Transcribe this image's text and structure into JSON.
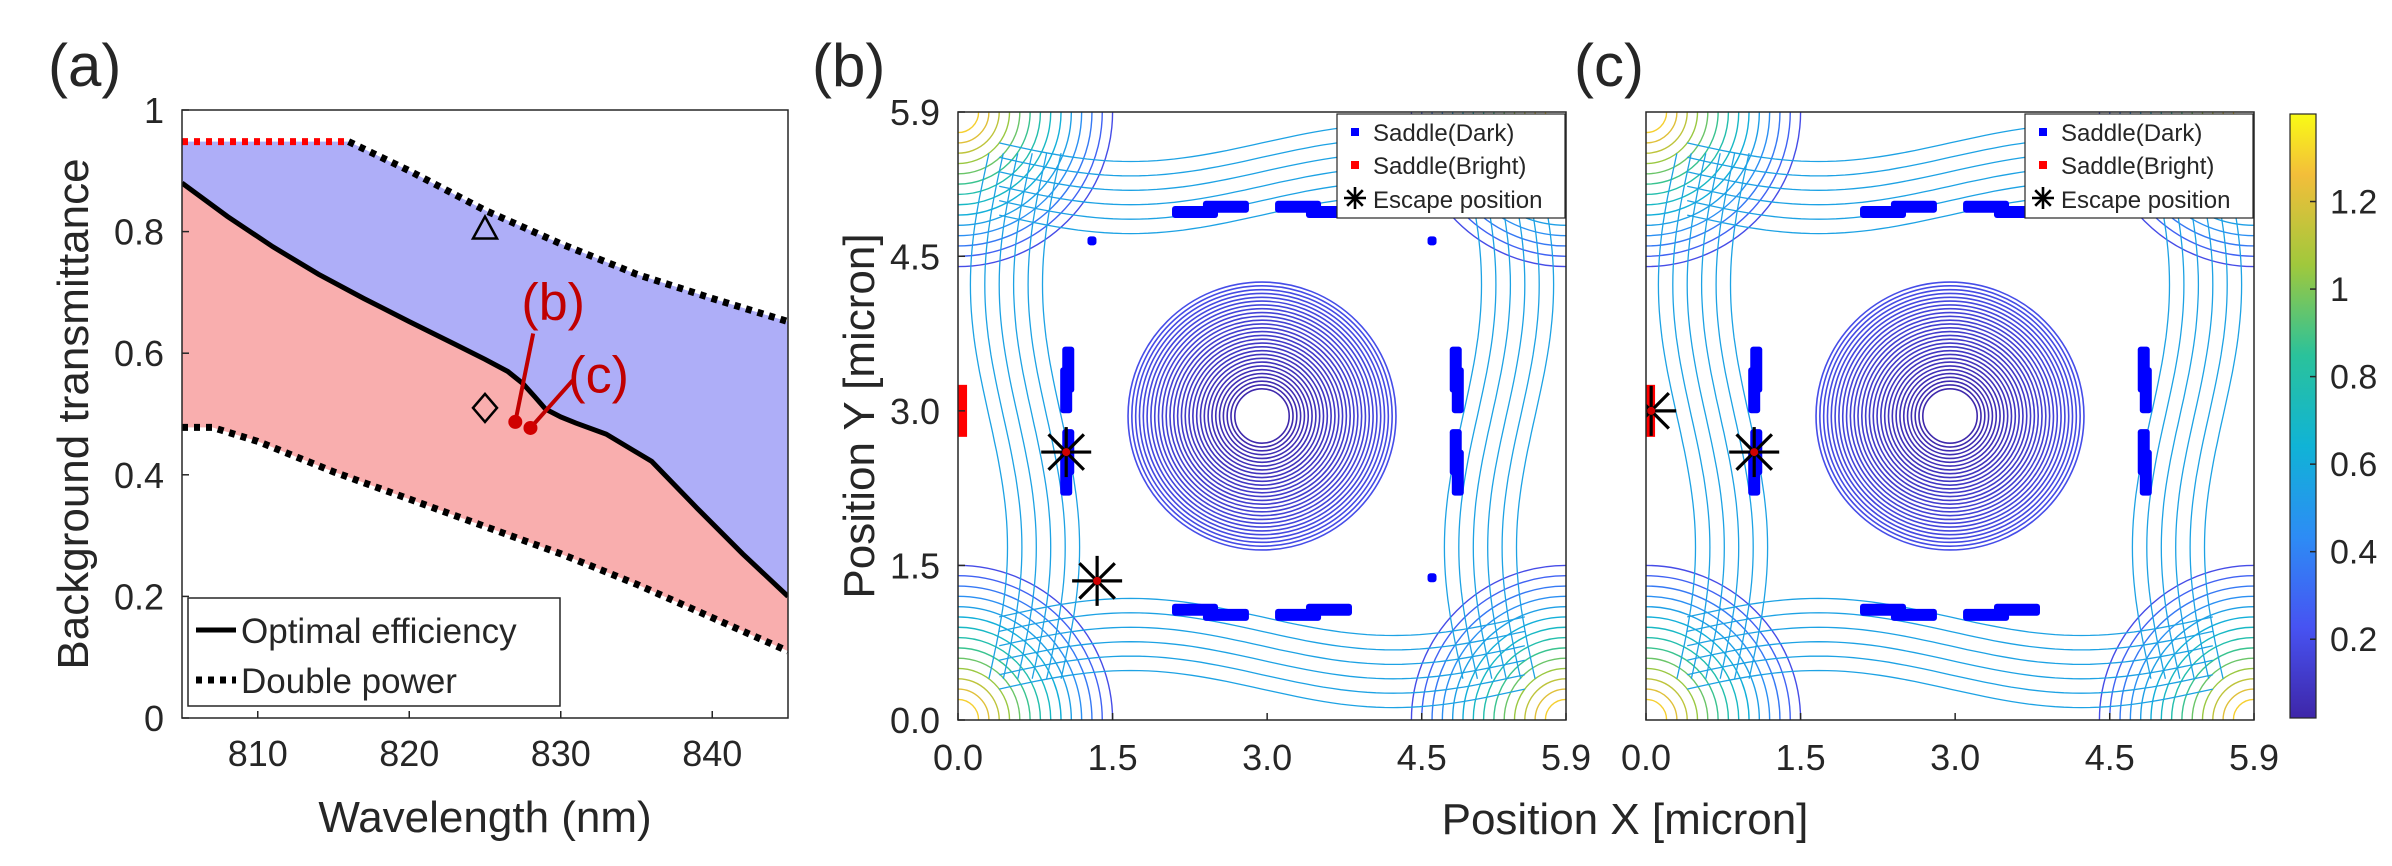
{
  "chart_data": [
    {
      "type": "area",
      "panel": "(a)",
      "xlabel": "Wavelength (nm)",
      "ylabel": "Background transmittance",
      "xlim": [
        805,
        845
      ],
      "ylim": [
        0,
        1
      ],
      "xticks": [
        "810",
        "820",
        "830",
        "840"
      ],
      "yticks": [
        "0",
        "0.2",
        "0.4",
        "0.6",
        "0.8",
        "1"
      ],
      "series": [
        {
          "name": "Optimal efficiency",
          "style": "solid",
          "color": "#000000",
          "x": [
            805,
            808,
            811,
            814,
            817,
            820,
            823,
            825,
            826.5,
            827.5,
            828.3,
            829,
            830,
            831,
            833,
            836,
            839,
            842,
            845
          ],
          "y": [
            0.88,
            0.825,
            0.775,
            0.73,
            0.69,
            0.652,
            0.615,
            0.59,
            0.57,
            0.55,
            0.528,
            0.508,
            0.495,
            0.485,
            0.467,
            0.422,
            0.345,
            0.27,
            0.2
          ]
        },
        {
          "name": "Double power (upper)",
          "style": "dotted",
          "color": "#000000",
          "x": [
            816,
            820,
            825,
            830,
            835,
            840,
            845
          ],
          "y": [
            0.948,
            0.9,
            0.835,
            0.78,
            0.73,
            0.69,
            0.652
          ]
        },
        {
          "name": "Double power (lower)",
          "style": "dotted",
          "color": "#000000",
          "x": [
            805,
            807,
            810,
            815,
            820,
            825,
            830,
            835,
            840,
            845
          ],
          "y": [
            0.478,
            0.478,
            0.455,
            0.405,
            0.36,
            0.315,
            0.27,
            0.22,
            0.165,
            0.11
          ]
        },
        {
          "name": "Cap (red dotted)",
          "style": "dotted",
          "color": "#ff0000",
          "x": [
            805,
            816
          ],
          "y": [
            0.948,
            0.948
          ]
        }
      ],
      "fills": [
        {
          "name": "upper-region",
          "color": "#aeaef8"
        },
        {
          "name": "lower-region",
          "color": "#f9aeae"
        }
      ],
      "markers": [
        {
          "name": "triangle",
          "x": 825,
          "y": 0.805
        },
        {
          "name": "diamond",
          "x": 825,
          "y": 0.51
        },
        {
          "name": "point-b",
          "x": 827,
          "y": 0.487,
          "color": "#d00000"
        },
        {
          "name": "point-c",
          "x": 828,
          "y": 0.477,
          "color": "#d00000"
        }
      ],
      "annotations": [
        {
          "text": "(b)",
          "x": 829.5,
          "y": 0.685,
          "target_x": 827,
          "target_y": 0.487
        },
        {
          "text": "(c)",
          "x": 832.5,
          "y": 0.565,
          "target_x": 828,
          "target_y": 0.477
        }
      ],
      "legend": {
        "position": "bottom-left",
        "entries": [
          "Optimal efficiency",
          "Double power"
        ]
      }
    },
    {
      "type": "contour",
      "panel": "(b)",
      "xlabel": "Position X [micron]",
      "ylabel": "Position Y [micron]",
      "xlim": [
        0,
        5.9
      ],
      "ylim": [
        0,
        5.9
      ],
      "xticks": [
        "0.0",
        "1.5",
        "3.0",
        "4.5",
        "5.9"
      ],
      "yticks": [
        "0.0",
        "1.5",
        "3.0",
        "4.5",
        "5.9"
      ],
      "saddle_dark": [
        [
          2.3,
          4.93
        ],
        [
          2.6,
          4.98
        ],
        [
          3.3,
          4.98
        ],
        [
          3.6,
          4.93
        ],
        [
          2.3,
          1.07
        ],
        [
          2.6,
          1.02
        ],
        [
          3.3,
          1.02
        ],
        [
          3.6,
          1.07
        ],
        [
          1.07,
          3.4
        ],
        [
          1.05,
          3.2
        ],
        [
          1.07,
          2.6
        ],
        [
          1.05,
          2.4
        ],
        [
          4.83,
          3.4
        ],
        [
          4.85,
          3.2
        ],
        [
          4.83,
          2.6
        ],
        [
          4.85,
          2.4
        ],
        [
          1.3,
          4.65
        ],
        [
          4.6,
          4.65
        ],
        [
          4.6,
          1.38
        ]
      ],
      "saddle_bright": [
        [
          0.02,
          3.0
        ]
      ],
      "escape_positions": [
        [
          1.05,
          2.6
        ],
        [
          1.35,
          1.35
        ]
      ],
      "legend": {
        "position": "top-right",
        "entries": [
          "Saddle(Dark)",
          "Saddle(Bright)",
          "Escape position"
        ]
      }
    },
    {
      "type": "contour",
      "panel": "(c)",
      "xlabel": "",
      "ylabel": "",
      "xlim": [
        0,
        5.9
      ],
      "ylim": [
        0,
        5.9
      ],
      "xticks": [
        "0.0",
        "1.5",
        "3.0",
        "4.5",
        "5.9"
      ],
      "yticks": [],
      "saddle_dark": [
        [
          2.3,
          4.93
        ],
        [
          2.6,
          4.98
        ],
        [
          3.3,
          4.98
        ],
        [
          3.6,
          4.93
        ],
        [
          2.3,
          1.07
        ],
        [
          2.6,
          1.02
        ],
        [
          3.3,
          1.02
        ],
        [
          3.6,
          1.07
        ],
        [
          1.07,
          3.4
        ],
        [
          1.05,
          3.2
        ],
        [
          1.07,
          2.6
        ],
        [
          1.05,
          2.4
        ],
        [
          4.83,
          3.4
        ],
        [
          4.85,
          3.2
        ],
        [
          4.83,
          2.6
        ],
        [
          4.85,
          2.4
        ]
      ],
      "saddle_bright": [
        [
          0.02,
          3.0
        ]
      ],
      "escape_positions": [
        [
          0.05,
          3.0
        ],
        [
          1.05,
          2.6
        ]
      ],
      "legend": {
        "position": "top-right",
        "entries": [
          "Saddle(Dark)",
          "Saddle(Bright)",
          "Escape position"
        ]
      },
      "colorbar": {
        "ticks": [
          "0.2",
          "0.4",
          "0.6",
          "0.8",
          "1",
          "1.2"
        ],
        "tick_values": [
          0.2,
          0.4,
          0.6,
          0.8,
          1.0,
          1.2
        ],
        "range": [
          0.02,
          1.4
        ]
      }
    }
  ],
  "labels": {
    "panel_a": "(a)",
    "panel_b": "(b)",
    "panel_c": "(c)",
    "anno_b": "(b)",
    "anno_c": "(c)",
    "legend_a_solid": "Optimal efficiency",
    "legend_a_dotted": "Double power",
    "legend_dark": "Saddle(Dark)",
    "legend_bright": "Saddle(Bright)",
    "legend_escape": "Escape position",
    "xlabel_a": "Wavelength (nm)",
    "ylabel_a": "Background transmittance",
    "xlabel_bc": "Position X [micron]",
    "ylabel_b": "Position Y [micron]"
  },
  "colors": {
    "dark_saddle": "#0000ff",
    "bright_saddle": "#ff0000",
    "upper_fill": "#aeaef8",
    "lower_fill": "#f9aeae",
    "annotation": "#c00000"
  }
}
